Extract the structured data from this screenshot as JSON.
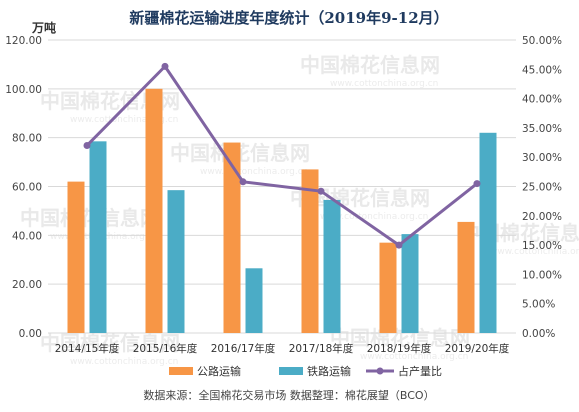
{
  "title": "新疆棉花运输进度年度统计（2019年9-12月）",
  "unit_label": "万吨",
  "source": "数据来源：全国棉花交易市场    数据整理：棉花展望（BCO）",
  "watermark": {
    "text": "中国棉花信息网",
    "url": "www.cottonchina.org.cn"
  },
  "colors": {
    "road": "#f79646",
    "rail": "#4bacc6",
    "share": "#8064a2",
    "grid": "#d9d9d9",
    "title": "#1f3a5f"
  },
  "chart_data": {
    "type": "bar",
    "categories": [
      "2014/15年度",
      "2015/16年度",
      "2016/17年度",
      "2017/18年度",
      "2018/19年度",
      "2019/20年度"
    ],
    "series": [
      {
        "name": "公路运输",
        "type": "bar",
        "axis": "left",
        "values": [
          62,
          100,
          78,
          67,
          37,
          45.5
        ]
      },
      {
        "name": "铁路运输",
        "type": "bar",
        "axis": "left",
        "values": [
          78.5,
          58.5,
          26.5,
          54.5,
          40.5,
          82
        ]
      },
      {
        "name": "占产量比",
        "type": "line",
        "axis": "right",
        "values": [
          32.0,
          45.5,
          25.8,
          24.2,
          15.0,
          25.5
        ]
      }
    ],
    "ylim": [
      0,
      120
    ],
    "yticks": [
      "0.00",
      "20.00",
      "40.00",
      "60.00",
      "80.00",
      "100.00",
      "120.00"
    ],
    "y2lim": [
      0,
      50
    ],
    "y2ticks": [
      "0.00%",
      "5.00%",
      "10.00%",
      "15.00%",
      "20.00%",
      "25.00%",
      "30.00%",
      "35.00%",
      "40.00%",
      "45.00%",
      "50.00%"
    ],
    "legend_position": "bottom"
  }
}
